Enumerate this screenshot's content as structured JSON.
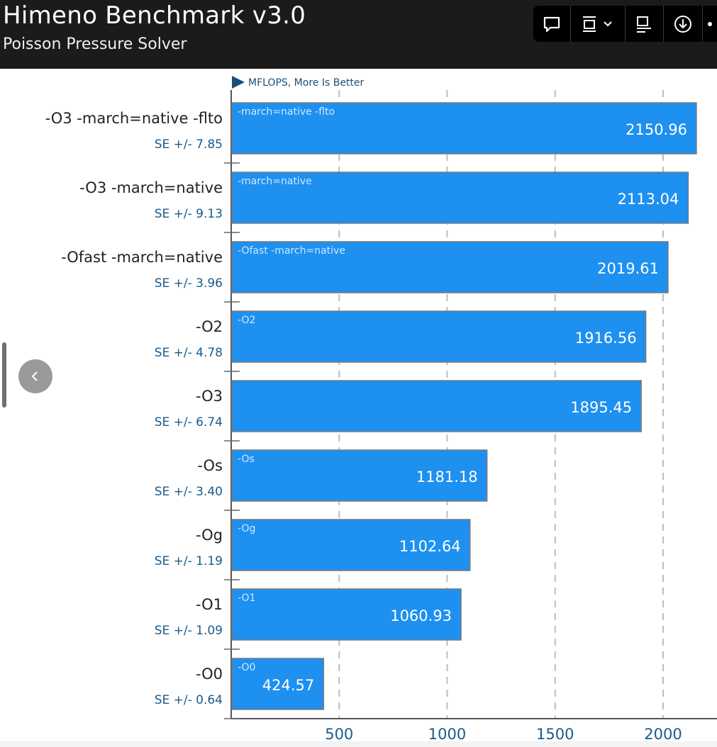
{
  "header": {
    "title": "Himeno Benchmark v3.0",
    "subtitle": "Poisson Pressure Solver"
  },
  "toolbar": {
    "icons": [
      "comment-icon",
      "layout-dropdown-icon",
      "text-align-icon",
      "download-icon",
      "more-icon"
    ]
  },
  "colors": {
    "bar": "#1e90f0",
    "bar_border": "#7a7a7a",
    "header_bg": "#1b1b1b",
    "se_text": "#1a5b8a",
    "label_text": "#222222",
    "grid": "#bdbdbd"
  },
  "chart_data": {
    "type": "bar",
    "orientation": "horizontal",
    "title": "Himeno Benchmark v3.0",
    "subtitle": "Poisson Pressure Solver",
    "legend_label": "MFLOPS, More Is Better",
    "categories": [
      "-O3 -march=native -flto",
      "-O3 -march=native",
      "-Ofast -march=native",
      "-O2",
      "-O3",
      "-Os",
      "-Og",
      "-O1",
      "-O0"
    ],
    "bar_inner_labels": [
      "-march=native -flto",
      "-march=native",
      "-Ofast -march=native",
      "-O2",
      "",
      "-Os",
      "-Og",
      "-O1",
      "-O0"
    ],
    "values": [
      2150.96,
      2113.04,
      2019.61,
      1916.56,
      1895.45,
      1181.18,
      1102.64,
      1060.93,
      424.57
    ],
    "value_labels": [
      "2150.96",
      "2113.04",
      "2019.61",
      "1916.56",
      "1895.45",
      "1181.18",
      "1102.64",
      "1060.93",
      "424.57"
    ],
    "se_labels": [
      "SE +/- 7.85",
      "SE +/- 9.13",
      "SE +/- 3.96",
      "SE +/- 4.78",
      "SE +/- 6.74",
      "SE +/- 3.40",
      "SE +/- 1.19",
      "SE +/- 1.09",
      "SE +/- 0.64"
    ],
    "xticks": [
      500,
      1000,
      1500,
      2000
    ],
    "xlim": [
      0,
      2270
    ],
    "grid": true
  }
}
